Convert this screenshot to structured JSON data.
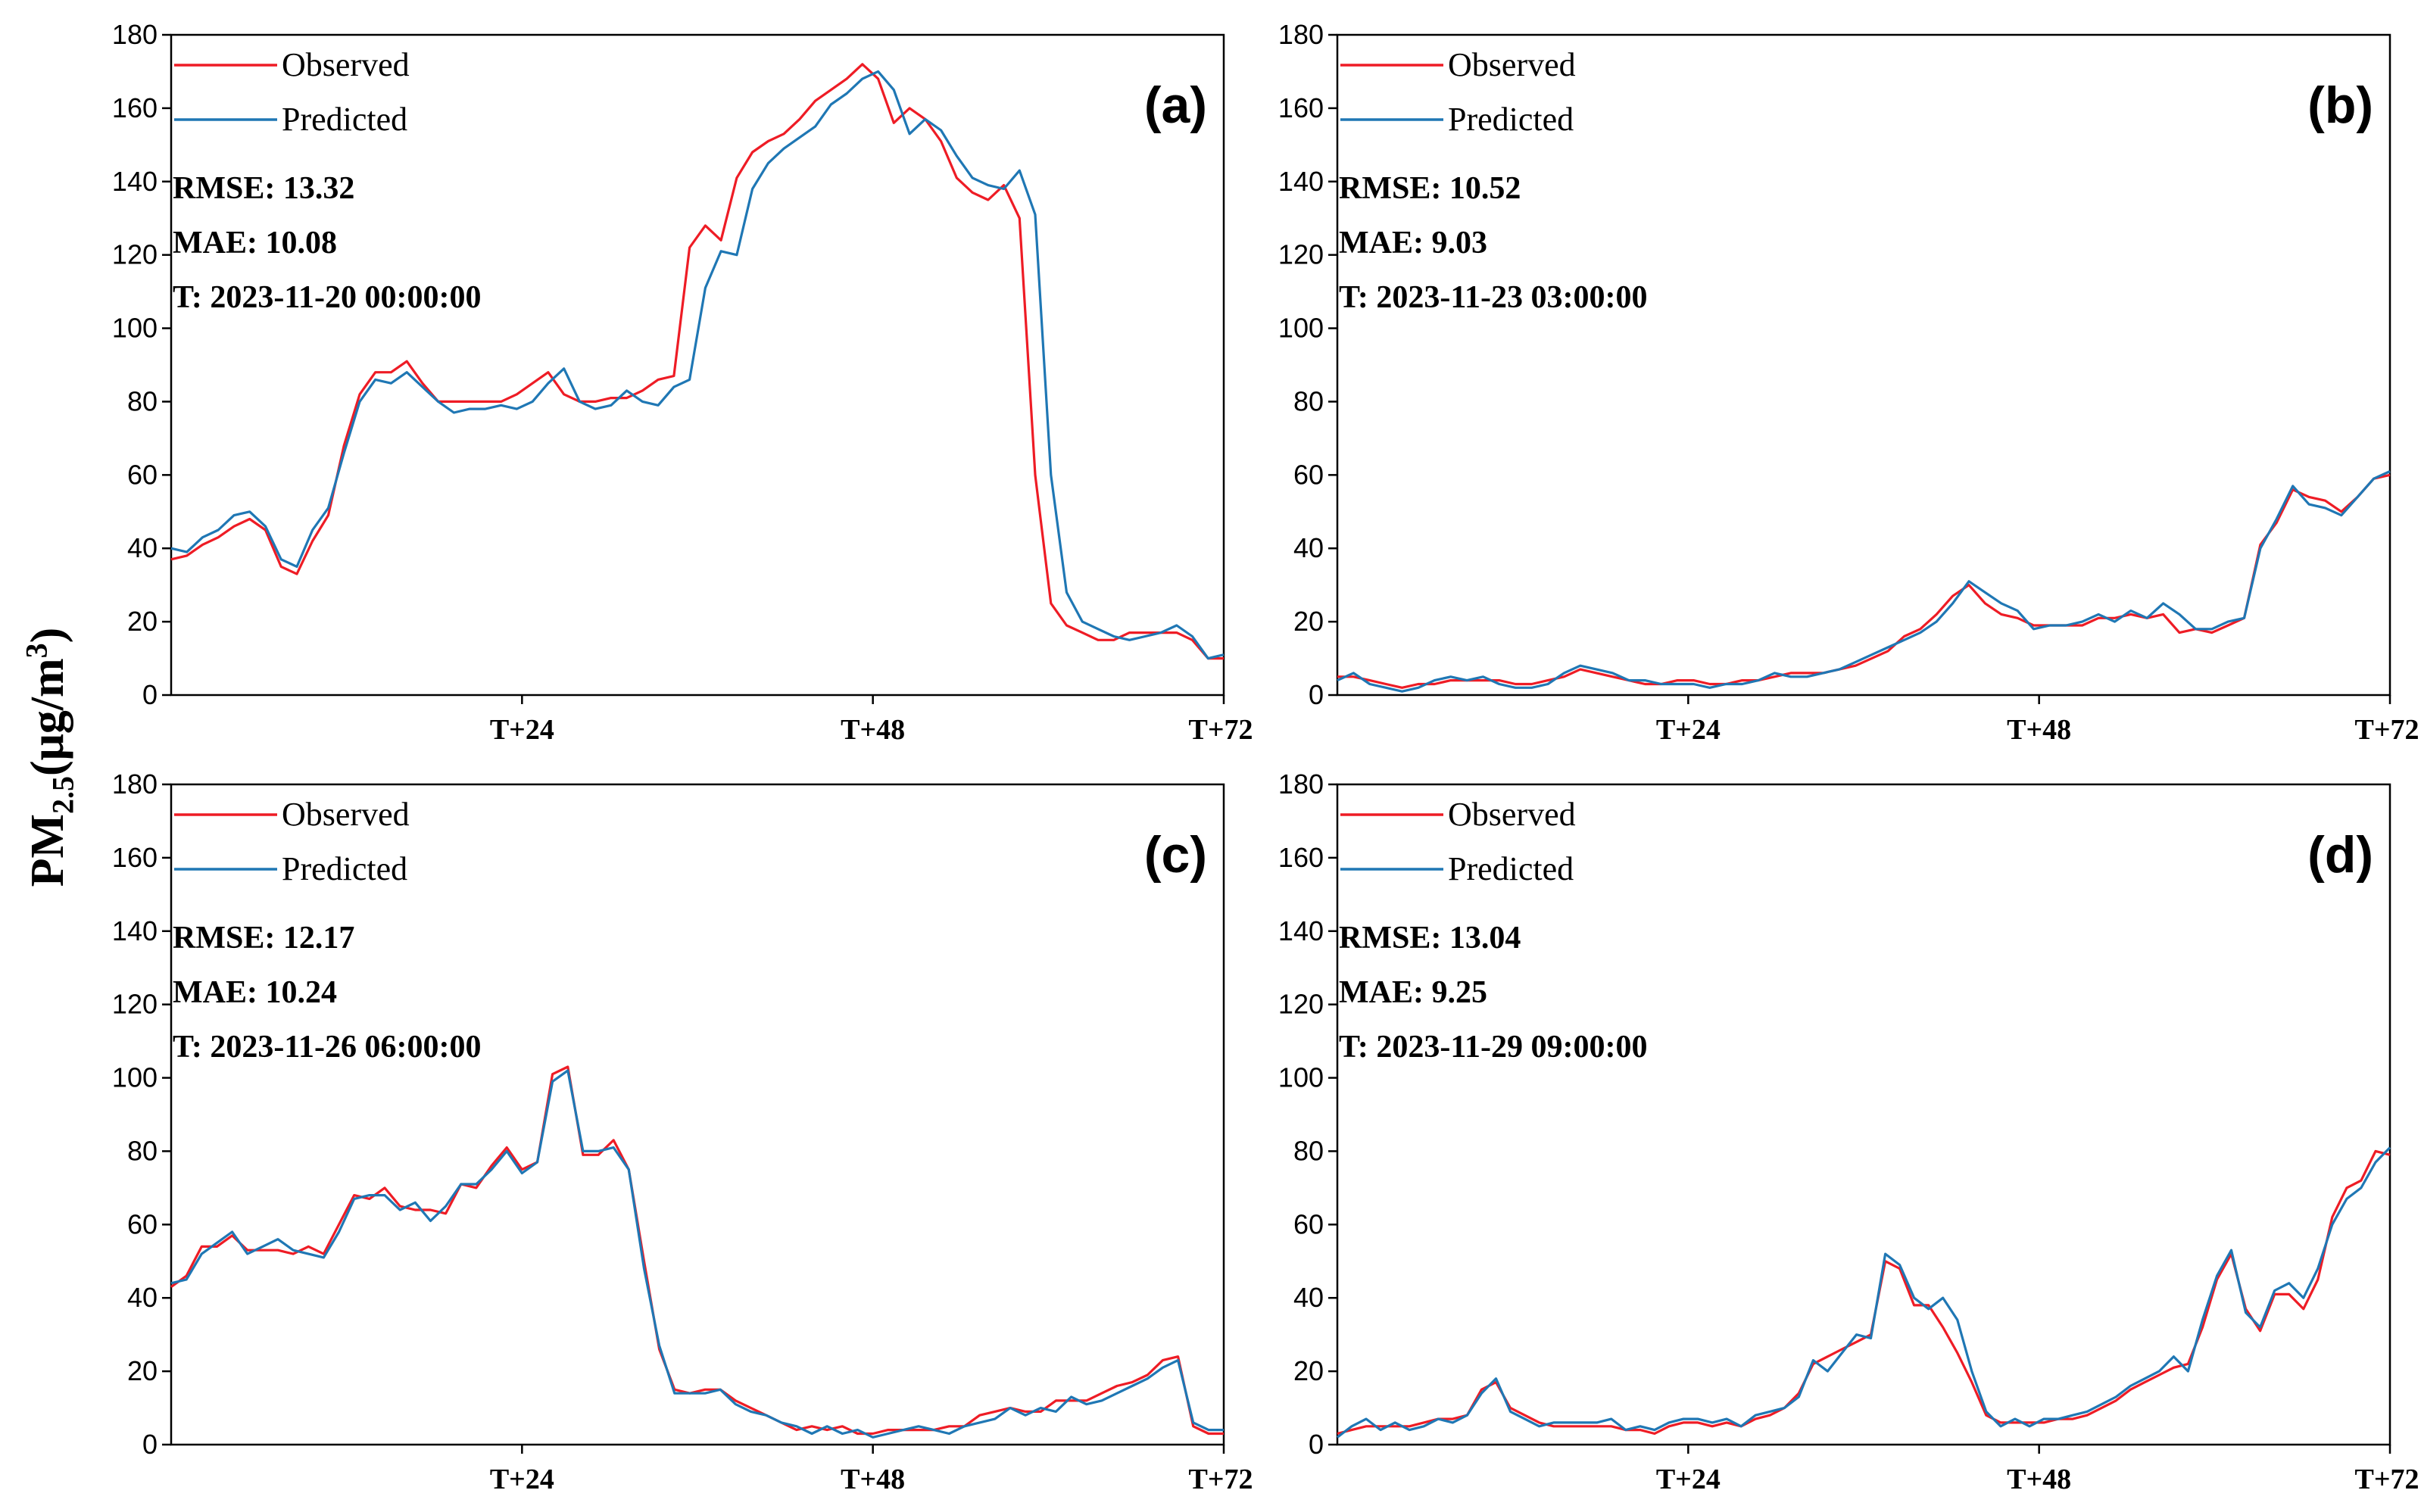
{
  "figure": {
    "ylabel_main": "PM",
    "ylabel_sub": "2.5",
    "ylabel_unit_open": "(μg/m",
    "ylabel_unit_sup": "3",
    "ylabel_unit_close": ")"
  },
  "colors": {
    "observed": "#ee1c25",
    "predicted": "#1f77b4"
  },
  "chart_data": [
    {
      "type": "line",
      "panel": "(a)",
      "legend": [
        "Observed",
        "Predicted"
      ],
      "rmse": "RMSE: 13.32",
      "mae": "MAE: 10.08",
      "time_prefix": "T: ",
      "time_value": "2023-11-20 00:00:00",
      "ylim": [
        0,
        180
      ],
      "yticks": [
        0,
        20,
        40,
        60,
        80,
        100,
        120,
        140,
        160,
        180
      ],
      "xlim": [
        0,
        72
      ],
      "xticks": [
        24,
        48,
        72
      ],
      "xtick_labels": [
        "T+24",
        "T+48",
        "T+72"
      ],
      "series": [
        {
          "name": "Observed",
          "values": [
            37,
            38,
            41,
            43,
            46,
            48,
            45,
            35,
            33,
            42,
            49,
            68,
            82,
            88,
            88,
            91,
            85,
            80,
            80,
            80,
            80,
            80,
            82,
            85,
            88,
            82,
            80,
            80,
            81,
            81,
            83,
            86,
            87,
            122,
            128,
            124,
            141,
            148,
            151,
            153,
            157,
            162,
            165,
            168,
            172,
            168,
            156,
            160,
            157,
            151,
            141,
            137,
            135,
            139,
            130,
            60,
            25,
            19,
            17,
            15,
            15,
            17,
            17,
            17,
            17,
            15,
            10,
            10
          ]
        },
        {
          "name": "Predicted",
          "values": [
            40,
            39,
            43,
            45,
            49,
            50,
            46,
            37,
            35,
            45,
            51,
            66,
            80,
            86,
            85,
            88,
            84,
            80,
            77,
            78,
            78,
            79,
            78,
            80,
            85,
            89,
            80,
            78,
            79,
            83,
            80,
            79,
            84,
            86,
            111,
            121,
            120,
            138,
            145,
            149,
            152,
            155,
            161,
            164,
            168,
            170,
            165,
            153,
            157,
            154,
            147,
            141,
            139,
            138,
            143,
            131,
            60,
            28,
            20,
            18,
            16,
            15,
            16,
            17,
            19,
            16,
            10,
            11
          ]
        }
      ]
    },
    {
      "type": "line",
      "panel": "(b)",
      "legend": [
        "Observed",
        "Predicted"
      ],
      "rmse": "RMSE: 10.52",
      "mae": "MAE: 9.03",
      "time_prefix": "T: ",
      "time_value": "2023-11-23 03:00:00",
      "ylim": [
        0,
        180
      ],
      "yticks": [
        0,
        20,
        40,
        60,
        80,
        100,
        120,
        140,
        160,
        180
      ],
      "xlim": [
        0,
        72
      ],
      "xticks": [
        24,
        48,
        72
      ],
      "xtick_labels": [
        "T+24",
        "T+48",
        "T+72"
      ],
      "series": [
        {
          "name": "Observed",
          "values": [
            5,
            5,
            4,
            3,
            2,
            3,
            3,
            4,
            4,
            4,
            4,
            3,
            3,
            4,
            5,
            7,
            6,
            5,
            4,
            3,
            3,
            4,
            4,
            3,
            3,
            4,
            4,
            5,
            6,
            6,
            6,
            7,
            8,
            10,
            12,
            16,
            18,
            22,
            27,
            30,
            25,
            22,
            21,
            19,
            19,
            19,
            19,
            21,
            21,
            22,
            21,
            22,
            17,
            18,
            17,
            19,
            21,
            41,
            47,
            56,
            54,
            53,
            50,
            54,
            59,
            60
          ]
        },
        {
          "name": "Predicted",
          "values": [
            4,
            6,
            3,
            2,
            1,
            2,
            4,
            5,
            4,
            5,
            3,
            2,
            2,
            3,
            6,
            8,
            7,
            6,
            4,
            4,
            3,
            3,
            3,
            2,
            3,
            3,
            4,
            6,
            5,
            5,
            6,
            7,
            9,
            11,
            13,
            15,
            17,
            20,
            25,
            31,
            28,
            25,
            23,
            18,
            19,
            19,
            20,
            22,
            20,
            23,
            21,
            25,
            22,
            18,
            18,
            20,
            21,
            40,
            48,
            57,
            52,
            51,
            49,
            54,
            59,
            61
          ]
        }
      ]
    },
    {
      "type": "line",
      "panel": "(c)",
      "legend": [
        "Observed",
        "Predicted"
      ],
      "rmse": "RMSE: 12.17",
      "mae": "MAE: 10.24",
      "time_prefix": "T: ",
      "time_value": "2023-11-26 06:00:00",
      "ylim": [
        0,
        180
      ],
      "yticks": [
        0,
        20,
        40,
        60,
        80,
        100,
        120,
        140,
        160,
        180
      ],
      "xlim": [
        0,
        72
      ],
      "xticks": [
        24,
        48,
        72
      ],
      "xtick_labels": [
        "T+24",
        "T+48",
        "T+72"
      ],
      "series": [
        {
          "name": "Observed",
          "values": [
            43,
            46,
            54,
            54,
            57,
            53,
            53,
            53,
            52,
            54,
            52,
            60,
            68,
            67,
            70,
            65,
            64,
            64,
            63,
            71,
            70,
            76,
            81,
            75,
            77,
            101,
            103,
            79,
            79,
            83,
            75,
            50,
            26,
            15,
            14,
            15,
            15,
            12,
            10,
            8,
            6,
            4,
            5,
            4,
            5,
            3,
            3,
            4,
            4,
            4,
            4,
            5,
            5,
            8,
            9,
            10,
            9,
            9,
            12,
            12,
            12,
            14,
            16,
            17,
            19,
            23,
            24,
            5,
            3,
            3
          ]
        },
        {
          "name": "Predicted",
          "values": [
            44,
            45,
            52,
            55,
            58,
            52,
            54,
            56,
            53,
            52,
            51,
            58,
            67,
            68,
            68,
            64,
            66,
            61,
            65,
            71,
            71,
            75,
            80,
            74,
            77,
            99,
            102,
            80,
            80,
            81,
            75,
            48,
            27,
            14,
            14,
            14,
            15,
            11,
            9,
            8,
            6,
            5,
            3,
            5,
            3,
            4,
            2,
            3,
            4,
            5,
            4,
            3,
            5,
            6,
            7,
            10,
            8,
            10,
            9,
            13,
            11,
            12,
            14,
            16,
            18,
            21,
            23,
            6,
            4,
            4
          ]
        }
      ]
    },
    {
      "type": "line",
      "panel": "(d)",
      "legend": [
        "Observed",
        "Predicted"
      ],
      "rmse": "RMSE: 13.04",
      "mae": "MAE: 9.25",
      "time_prefix": "T: ",
      "time_value": "2023-11-29 09:00:00",
      "ylim": [
        0,
        180
      ],
      "yticks": [
        0,
        20,
        40,
        60,
        80,
        100,
        120,
        140,
        160,
        180
      ],
      "xlim": [
        0,
        72
      ],
      "xticks": [
        24,
        48,
        72
      ],
      "xtick_labels": [
        "T+24",
        "T+48",
        "T+72"
      ],
      "series": [
        {
          "name": "Observed",
          "values": [
            3,
            4,
            5,
            5,
            5,
            5,
            6,
            7,
            7,
            8,
            15,
            17,
            10,
            8,
            6,
            5,
            5,
            5,
            5,
            5,
            4,
            4,
            3,
            5,
            6,
            6,
            5,
            6,
            5,
            7,
            8,
            10,
            14,
            22,
            24,
            26,
            28,
            30,
            50,
            48,
            38,
            38,
            32,
            25,
            17,
            8,
            6,
            6,
            6,
            6,
            7,
            7,
            8,
            10,
            12,
            15,
            17,
            19,
            21,
            22,
            32,
            45,
            52,
            37,
            31,
            41,
            41,
            37,
            45,
            62,
            70,
            72,
            80,
            79
          ]
        },
        {
          "name": "Predicted",
          "values": [
            2,
            5,
            7,
            4,
            6,
            4,
            5,
            7,
            6,
            8,
            14,
            18,
            9,
            7,
            5,
            6,
            6,
            6,
            6,
            7,
            4,
            5,
            4,
            6,
            7,
            7,
            6,
            7,
            5,
            8,
            9,
            10,
            13,
            23,
            20,
            25,
            30,
            29,
            52,
            49,
            40,
            37,
            40,
            34,
            20,
            9,
            5,
            7,
            5,
            7,
            7,
            8,
            9,
            11,
            13,
            16,
            18,
            20,
            24,
            20,
            34,
            46,
            53,
            36,
            32,
            42,
            44,
            40,
            48,
            60,
            67,
            70,
            77,
            81
          ]
        }
      ]
    }
  ]
}
